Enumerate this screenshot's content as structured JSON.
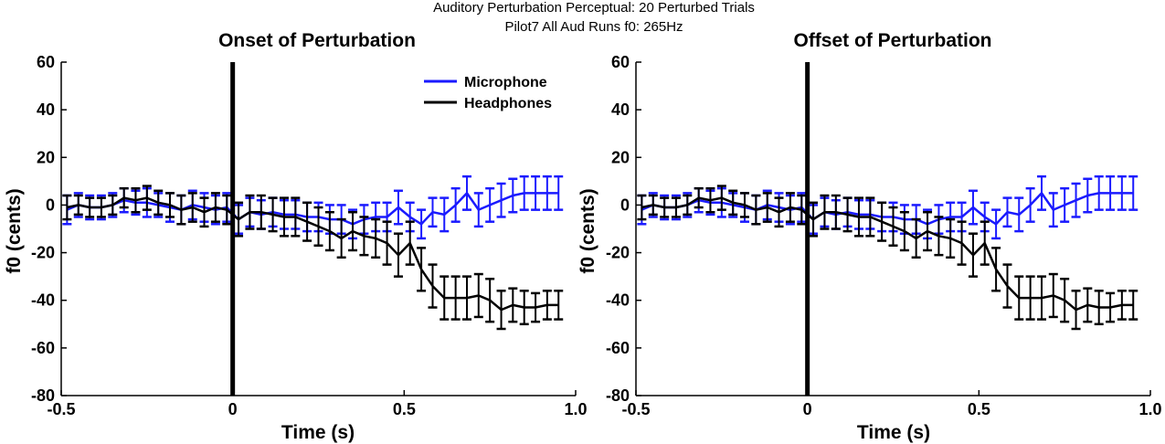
{
  "figure": {
    "suptitle_line1": "Auditory Perturbation Perceptual: 20 Perturbed Trials",
    "suptitle_line2": "Pilot7 All Aud Runs    f0: 265Hz"
  },
  "colors": {
    "microphone": "#1a1aff",
    "headphones": "#000000",
    "event_line": "#000000"
  },
  "chart_data": [
    {
      "type": "line",
      "title": "Onset of Perturbation",
      "xlabel": "Time (s)",
      "ylabel": "f0 (cents)",
      "xlim": [
        -0.5,
        1.0
      ],
      "ylim": [
        -80,
        60
      ],
      "xticks": [
        -0.5,
        0,
        0.5,
        1.0
      ],
      "xtick_labels": [
        "-0.5",
        "0",
        "0.5",
        "1.0"
      ],
      "yticks": [
        60,
        40,
        20,
        0,
        -20,
        -40,
        -60,
        -80
      ],
      "ytick_labels": [
        "60",
        "40",
        "20",
        "0",
        "-20",
        "-40",
        "-60",
        "-80"
      ],
      "event_line_x": 0,
      "legend_location": "top-right",
      "legend": [
        "Microphone",
        "Headphones"
      ],
      "x": [
        -0.483,
        -0.45,
        -0.417,
        -0.383,
        -0.35,
        -0.317,
        -0.283,
        -0.25,
        -0.217,
        -0.183,
        -0.15,
        -0.117,
        -0.083,
        -0.05,
        -0.017,
        0.017,
        0.05,
        0.083,
        0.117,
        0.15,
        0.183,
        0.217,
        0.25,
        0.283,
        0.317,
        0.35,
        0.383,
        0.417,
        0.45,
        0.483,
        0.517,
        0.55,
        0.583,
        0.617,
        0.65,
        0.683,
        0.717,
        0.75,
        0.783,
        0.817,
        0.85,
        0.883,
        0.917,
        0.95
      ],
      "series": [
        {
          "name": "Microphone",
          "color": "#1a1aff",
          "values": [
            -2,
            0,
            -1,
            -1,
            0,
            2,
            1,
            1,
            0,
            -1,
            -2,
            0,
            -1,
            -2,
            -1,
            -6,
            -3,
            -4,
            -3,
            -4,
            -4,
            -5,
            -5,
            -6,
            -6,
            -8,
            -6,
            -5,
            -5,
            -1,
            -5,
            -8,
            -3,
            -4,
            0,
            5,
            -2,
            0,
            2,
            4,
            5,
            5,
            5,
            5
          ],
          "errors": [
            6,
            5,
            5,
            5,
            5,
            5,
            5,
            6,
            5,
            6,
            6,
            6,
            6,
            6,
            6,
            6,
            6,
            6,
            6,
            6,
            6,
            6,
            6,
            6,
            6,
            6,
            6,
            6,
            6,
            7,
            6,
            6,
            6,
            7,
            7,
            7,
            7,
            7,
            7,
            7,
            7,
            7,
            7,
            7
          ]
        },
        {
          "name": "Headphones",
          "color": "#000000",
          "values": [
            -1,
            0,
            -1,
            -1,
            0,
            3,
            2,
            3,
            1,
            0,
            -2,
            -1,
            -3,
            -1,
            -2,
            -6,
            -3,
            -3,
            -4,
            -5,
            -5,
            -7,
            -9,
            -11,
            -14,
            -11,
            -13,
            -14,
            -16,
            -21,
            -16,
            -27,
            -34,
            -39,
            -39,
            -39,
            -38,
            -40,
            -44,
            -42,
            -43,
            -43,
            -42,
            -42
          ],
          "errors": [
            5,
            4,
            4,
            4,
            4,
            4,
            5,
            5,
            5,
            5,
            6,
            6,
            6,
            6,
            6,
            7,
            7,
            7,
            7,
            8,
            8,
            8,
            8,
            8,
            8,
            8,
            8,
            8,
            9,
            9,
            9,
            9,
            9,
            9,
            9,
            9,
            9,
            9,
            8,
            7,
            7,
            6,
            6,
            6
          ]
        }
      ]
    },
    {
      "type": "line",
      "title": "Offset of Perturbation",
      "xlabel": "Time (s)",
      "ylabel": "f0 (cents)",
      "xlim": [
        -0.5,
        1.0
      ],
      "ylim": [
        -80,
        60
      ],
      "xticks": [
        -0.5,
        0,
        0.5,
        1.0
      ],
      "xtick_labels": [
        "-0.5",
        "0",
        "0.5",
        "1.0"
      ],
      "yticks": [
        60,
        40,
        20,
        0,
        -20,
        -40,
        -60,
        -80
      ],
      "ytick_labels": [
        "60",
        "40",
        "20",
        "0",
        "-20",
        "-40",
        "-60",
        "-80"
      ],
      "event_line_x": 0,
      "x": [
        -0.483,
        -0.45,
        -0.417,
        -0.383,
        -0.35,
        -0.317,
        -0.283,
        -0.25,
        -0.217,
        -0.183,
        -0.15,
        -0.117,
        -0.083,
        -0.05,
        -0.017,
        0.017,
        0.05,
        0.083,
        0.117,
        0.15,
        0.183,
        0.217,
        0.25,
        0.283,
        0.317,
        0.35,
        0.383,
        0.417,
        0.45,
        0.483,
        0.517,
        0.55,
        0.583,
        0.617,
        0.65,
        0.683,
        0.717,
        0.75,
        0.783,
        0.817,
        0.85,
        0.883,
        0.917,
        0.95
      ],
      "series": [
        {
          "name": "Microphone",
          "color": "#1a1aff",
          "values": [
            -2,
            0,
            -1,
            -1,
            0,
            2,
            1,
            1,
            0,
            -1,
            -2,
            0,
            -1,
            -2,
            -1,
            -6,
            -3,
            -4,
            -3,
            -4,
            -4,
            -5,
            -5,
            -6,
            -6,
            -8,
            -6,
            -5,
            -5,
            -1,
            -5,
            -8,
            -3,
            -4,
            0,
            5,
            -2,
            0,
            2,
            4,
            5,
            5,
            5,
            5
          ],
          "errors": [
            6,
            5,
            5,
            5,
            5,
            5,
            5,
            6,
            5,
            6,
            6,
            6,
            6,
            6,
            6,
            6,
            6,
            6,
            6,
            6,
            6,
            6,
            6,
            6,
            6,
            6,
            6,
            6,
            6,
            7,
            6,
            6,
            6,
            7,
            7,
            7,
            7,
            7,
            7,
            7,
            7,
            7,
            7,
            7
          ]
        },
        {
          "name": "Headphones",
          "color": "#000000",
          "values": [
            -1,
            0,
            -1,
            -1,
            0,
            3,
            2,
            3,
            1,
            0,
            -2,
            -1,
            -3,
            -1,
            -2,
            -6,
            -3,
            -3,
            -4,
            -5,
            -5,
            -7,
            -9,
            -11,
            -14,
            -11,
            -13,
            -14,
            -16,
            -21,
            -16,
            -27,
            -34,
            -39,
            -39,
            -39,
            -38,
            -40,
            -44,
            -42,
            -43,
            -43,
            -42,
            -42
          ],
          "errors": [
            5,
            4,
            4,
            4,
            4,
            4,
            5,
            5,
            5,
            5,
            6,
            6,
            6,
            6,
            6,
            7,
            7,
            7,
            7,
            8,
            8,
            8,
            8,
            8,
            8,
            8,
            8,
            8,
            9,
            9,
            9,
            9,
            9,
            9,
            9,
            9,
            9,
            9,
            8,
            7,
            7,
            6,
            6,
            6
          ]
        }
      ]
    }
  ]
}
